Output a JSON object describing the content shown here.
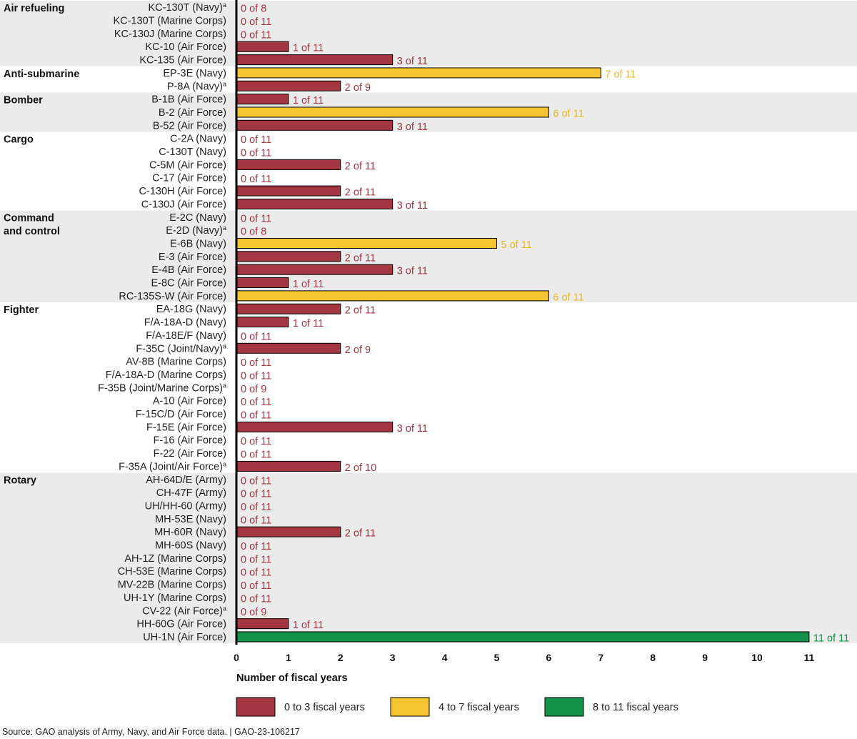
{
  "colors": {
    "low": "#a33640",
    "mid": "#f4c531",
    "high": "#15924a",
    "band": "#ebebeb",
    "label_low": "#a33640",
    "label_mid": "#e8b828",
    "label_high": "#15924a"
  },
  "chart_data": {
    "type": "bar",
    "orientation": "horizontal",
    "xlabel": "Number of fiscal years",
    "xlim": [
      0,
      11
    ],
    "xticks": [
      "0",
      "1",
      "2",
      "3",
      "4",
      "5",
      "6",
      "7",
      "8",
      "9",
      "10",
      "11"
    ],
    "groups": [
      {
        "name": [
          "Air refueling"
        ],
        "items": [
          {
            "aircraft": "KC-130T (Navy)",
            "note": "a",
            "value": 0,
            "total": 8,
            "label": "0 of 8"
          },
          {
            "aircraft": "KC-130T (Marine Corps)",
            "value": 0,
            "total": 11,
            "label": "0 of 11"
          },
          {
            "aircraft": "KC-130J (Marine Corps)",
            "value": 0,
            "total": 11,
            "label": "0 of 11"
          },
          {
            "aircraft": "KC-10 (Air Force)",
            "value": 1,
            "total": 11,
            "label": "1 of 11"
          },
          {
            "aircraft": "KC-135 (Air Force)",
            "value": 3,
            "total": 11,
            "label": "3 of 11"
          }
        ]
      },
      {
        "name": [
          "Anti-submarine"
        ],
        "items": [
          {
            "aircraft": "EP-3E (Navy)",
            "value": 7,
            "total": 11,
            "label": "7 of 11"
          },
          {
            "aircraft": "P-8A (Navy)",
            "note": "a",
            "value": 2,
            "total": 9,
            "label": "2 of 9"
          }
        ]
      },
      {
        "name": [
          "Bomber"
        ],
        "items": [
          {
            "aircraft": "B-1B (Air Force)",
            "value": 1,
            "total": 11,
            "label": "1 of 11"
          },
          {
            "aircraft": "B-2 (Air Force)",
            "value": 6,
            "total": 11,
            "label": "6 of 11"
          },
          {
            "aircraft": "B-52 (Air Force)",
            "value": 3,
            "total": 11,
            "label": "3 of 11"
          }
        ]
      },
      {
        "name": [
          "Cargo"
        ],
        "items": [
          {
            "aircraft": "C-2A (Navy)",
            "value": 0,
            "total": 11,
            "label": "0 of 11"
          },
          {
            "aircraft": "C-130T (Navy)",
            "value": 0,
            "total": 11,
            "label": "0 of 11"
          },
          {
            "aircraft": "C-5M (Air Force)",
            "value": 2,
            "total": 11,
            "label": "2 of 11"
          },
          {
            "aircraft": "C-17 (Air Force)",
            "value": 0,
            "total": 11,
            "label": "0 of 11"
          },
          {
            "aircraft": "C-130H (Air Force)",
            "value": 2,
            "total": 11,
            "label": "2 of 11"
          },
          {
            "aircraft": "C-130J (Air Force)",
            "value": 3,
            "total": 11,
            "label": "3 of 11"
          }
        ]
      },
      {
        "name": [
          "Command",
          "and control"
        ],
        "items": [
          {
            "aircraft": "E-2C (Navy)",
            "value": 0,
            "total": 11,
            "label": "0 of 11"
          },
          {
            "aircraft": "E-2D (Navy)",
            "note": "a",
            "value": 0,
            "total": 8,
            "label": "0 of 8"
          },
          {
            "aircraft": "E-6B (Navy)",
            "value": 5,
            "total": 11,
            "label": "5 of 11"
          },
          {
            "aircraft": "E-3 (Air Force)",
            "value": 2,
            "total": 11,
            "label": "2 of 11"
          },
          {
            "aircraft": "E-4B (Air Force)",
            "value": 3,
            "total": 11,
            "label": "3 of 11"
          },
          {
            "aircraft": "E-8C (Air Force)",
            "value": 1,
            "total": 11,
            "label": "1 of 11"
          },
          {
            "aircraft": "RC-135S-W (Air Force)",
            "value": 6,
            "total": 11,
            "label": "6 of 11"
          }
        ]
      },
      {
        "name": [
          "Fighter"
        ],
        "items": [
          {
            "aircraft": "EA-18G (Navy)",
            "value": 2,
            "total": 11,
            "label": "2 of 11"
          },
          {
            "aircraft": "F/A-18A-D (Navy)",
            "value": 1,
            "total": 11,
            "label": "1 of 11"
          },
          {
            "aircraft": "F/A-18E/F (Navy)",
            "value": 0,
            "total": 11,
            "label": "0 of 11"
          },
          {
            "aircraft": "F-35C (Joint/Navy)",
            "note": "a",
            "value": 2,
            "total": 9,
            "label": "2 of 9"
          },
          {
            "aircraft": "AV-8B (Marine Corps)",
            "value": 0,
            "total": 11,
            "label": "0 of 11"
          },
          {
            "aircraft": "F/A-18A-D (Marine Corps)",
            "value": 0,
            "total": 11,
            "label": "0 of 11"
          },
          {
            "aircraft": "F-35B (Joint/Marine Corps)",
            "note": "a",
            "value": 0,
            "total": 9,
            "label": "0 of 9"
          },
          {
            "aircraft": "A-10 (Air Force)",
            "value": 0,
            "total": 11,
            "label": "0 of 11"
          },
          {
            "aircraft": "F-15C/D (Air Force)",
            "value": 0,
            "total": 11,
            "label": "0 of 11"
          },
          {
            "aircraft": "F-15E (Air Force)",
            "value": 3,
            "total": 11,
            "label": "3 of 11"
          },
          {
            "aircraft": "F-16 (Air Force)",
            "value": 0,
            "total": 11,
            "label": "0 of 11"
          },
          {
            "aircraft": "F-22 (Air Force)",
            "value": 0,
            "total": 11,
            "label": "0 of 11"
          },
          {
            "aircraft": "F-35A (Joint/Air Force)",
            "note": "a",
            "value": 2,
            "total": 10,
            "label": "2 of 10"
          }
        ]
      },
      {
        "name": [
          "Rotary"
        ],
        "items": [
          {
            "aircraft": "AH-64D/E (Army)",
            "value": 0,
            "total": 11,
            "label": "0 of 11"
          },
          {
            "aircraft": "CH-47F (Army)",
            "value": 0,
            "total": 11,
            "label": "0 of 11"
          },
          {
            "aircraft": "UH/HH-60 (Army)",
            "value": 0,
            "total": 11,
            "label": "0 of 11"
          },
          {
            "aircraft": "MH-53E (Navy)",
            "value": 0,
            "total": 11,
            "label": "0 of 11"
          },
          {
            "aircraft": "MH-60R (Navy)",
            "value": 2,
            "total": 11,
            "label": "2 of 11"
          },
          {
            "aircraft": "MH-60S (Navy)",
            "value": 0,
            "total": 11,
            "label": "0 of 11"
          },
          {
            "aircraft": "AH-1Z (Marine Corps)",
            "value": 0,
            "total": 11,
            "label": "0 of 11"
          },
          {
            "aircraft": "CH-53E (Marine Corps)",
            "value": 0,
            "total": 11,
            "label": "0 of 11"
          },
          {
            "aircraft": "MV-22B (Marine Corps)",
            "value": 0,
            "total": 11,
            "label": "0 of 11"
          },
          {
            "aircraft": "UH-1Y (Marine Corps)",
            "value": 0,
            "total": 11,
            "label": "0 of 11"
          },
          {
            "aircraft": "CV-22 (Air Force)",
            "note": "a",
            "value": 0,
            "total": 9,
            "label": "0 of 9"
          },
          {
            "aircraft": "HH-60G (Air Force)",
            "value": 1,
            "total": 11,
            "label": "1 of 11"
          },
          {
            "aircraft": "UH-1N (Air Force)",
            "value": 11,
            "total": 11,
            "label": "11 of 11"
          }
        ]
      }
    ],
    "legend": [
      {
        "key": "low",
        "label": "0 to 3 fiscal years"
      },
      {
        "key": "mid",
        "label": "4 to 7 fiscal years"
      },
      {
        "key": "high",
        "label": "8 to 11 fiscal years"
      }
    ]
  },
  "source": "Source: GAO analysis of Army, Navy, and Air Force data.  |  GAO-23-106217"
}
